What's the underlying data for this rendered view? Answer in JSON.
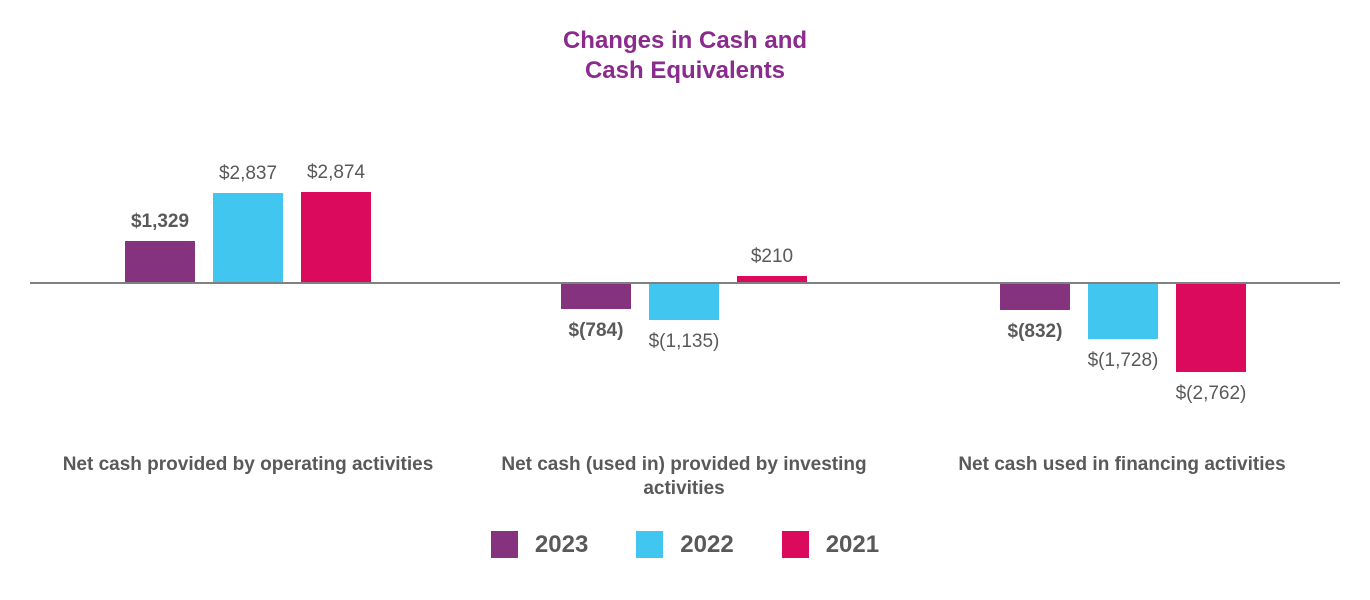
{
  "title": {
    "line1": "Changes in Cash and",
    "line2": "Cash Equivalents",
    "color": "#8A2B8D"
  },
  "colors": {
    "text_gray": "#595959",
    "axis_gray": "#808080",
    "purple_2023": "#86337F",
    "cyan_2022": "#41C6F0",
    "crimson_2021": "#DB0A5C"
  },
  "chart_data": {
    "type": "bar",
    "title": "Changes in Cash and Cash Equivalents",
    "categories": [
      "Net cash provided by operating activities",
      "Net cash (used in) provided by investing activities",
      "Net cash used in financing activities"
    ],
    "category_keys": [
      "operating",
      "investing",
      "financing"
    ],
    "series": [
      {
        "name": "2023",
        "color": "#86337F",
        "values": [
          1329,
          -784,
          -832
        ],
        "labels": [
          "$1,329",
          "$(784)",
          "$(832)"
        ],
        "bold_labels": true
      },
      {
        "name": "2022",
        "color": "#41C6F0",
        "values": [
          2837,
          -1135,
          -1728
        ],
        "labels": [
          "$2,837",
          "$(1,135)",
          "$(1,728)"
        ],
        "bold_labels": false
      },
      {
        "name": "2021",
        "color": "#DB0A5C",
        "values": [
          2874,
          210,
          -2762
        ],
        "labels": [
          "$2,874",
          "$210",
          "$(2,762)"
        ],
        "bold_labels": false
      }
    ],
    "ylim": [
      -3000,
      3000
    ],
    "baseline": 0,
    "grid": false,
    "y_axis_shown": false,
    "legend_position": "bottom",
    "legend": [
      "2023",
      "2022",
      "2021"
    ]
  }
}
